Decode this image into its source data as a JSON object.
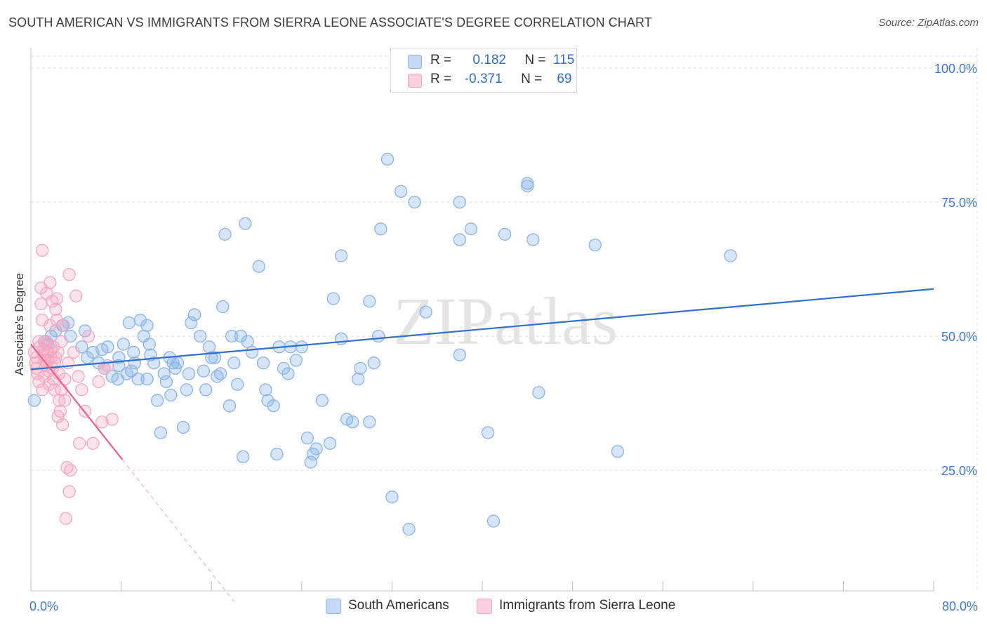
{
  "chart_data": {
    "type": "scatter",
    "title": "SOUTH AMERICAN VS IMMIGRANTS FROM SIERRA LEONE ASSOCIATE'S DEGREE CORRELATION CHART",
    "source": "Source: ZipAtlas.com",
    "xlabel": "",
    "ylabel": "Associate's Degree",
    "xlim": [
      0,
      80
    ],
    "ylim": [
      0,
      105
    ],
    "x_tick_labels": [
      "0.0%",
      "80.0%"
    ],
    "y_ticks": [
      25,
      50,
      75,
      100
    ],
    "y_tick_labels": [
      "25.0%",
      "50.0%",
      "75.0%",
      "100.0%"
    ],
    "grid": true,
    "watermark": "ZIPatlas",
    "legend_position": "top-center",
    "stats": [
      {
        "r_label": "R =",
        "r": "0.182",
        "n_label": "N =",
        "n": "115"
      },
      {
        "r_label": "R =",
        "r": "-0.371",
        "n_label": "N =",
        "n": "69"
      }
    ],
    "series": [
      {
        "name": "South Americans",
        "color": "#8ab4e8",
        "line_color": "#2f6fd0",
        "trend": {
          "x0": 0,
          "y0": 43.8,
          "x1": 80,
          "y1": 58.8
        },
        "points": [
          [
            0.3,
            38
          ],
          [
            1.2,
            49
          ],
          [
            1.5,
            48.5
          ],
          [
            1.8,
            50
          ],
          [
            2.2,
            51
          ],
          [
            2.8,
            52
          ],
          [
            3.3,
            52.5
          ],
          [
            3.5,
            50
          ],
          [
            4.5,
            48
          ],
          [
            4.8,
            51
          ],
          [
            5,
            46
          ],
          [
            5.5,
            47
          ],
          [
            6,
            45
          ],
          [
            6.3,
            47.5
          ],
          [
            6.5,
            44
          ],
          [
            6.8,
            48
          ],
          [
            7.2,
            42.5
          ],
          [
            7.7,
            42
          ],
          [
            7.8,
            46
          ],
          [
            7.8,
            44.5
          ],
          [
            8.2,
            48.5
          ],
          [
            8.5,
            43
          ],
          [
            8.7,
            52.5
          ],
          [
            8.9,
            43.5
          ],
          [
            9.1,
            47
          ],
          [
            9.2,
            45
          ],
          [
            9.5,
            42
          ],
          [
            9.7,
            53
          ],
          [
            10,
            50
          ],
          [
            10.3,
            42
          ],
          [
            10.3,
            52
          ],
          [
            10.5,
            48.5
          ],
          [
            10.6,
            46.5
          ],
          [
            10.9,
            45
          ],
          [
            11.2,
            38
          ],
          [
            11.5,
            32
          ],
          [
            11.8,
            43
          ],
          [
            12,
            41.5
          ],
          [
            12.3,
            46
          ],
          [
            12.4,
            39
          ],
          [
            12.6,
            45
          ],
          [
            12.8,
            44
          ],
          [
            13,
            45
          ],
          [
            13.5,
            33
          ],
          [
            13.8,
            40
          ],
          [
            14,
            43
          ],
          [
            14.2,
            52.5
          ],
          [
            14.5,
            54
          ],
          [
            15,
            50
          ],
          [
            15.3,
            43.5
          ],
          [
            15.5,
            40
          ],
          [
            15.8,
            48
          ],
          [
            16,
            46
          ],
          [
            16.3,
            46
          ],
          [
            16.5,
            42.5
          ],
          [
            16.8,
            43
          ],
          [
            17,
            55.5
          ],
          [
            17.2,
            69
          ],
          [
            17.6,
            37
          ],
          [
            17.8,
            50
          ],
          [
            18,
            45
          ],
          [
            18.3,
            41
          ],
          [
            18.6,
            50
          ],
          [
            18.8,
            27.5
          ],
          [
            19,
            71
          ],
          [
            19.2,
            49
          ],
          [
            19.6,
            47
          ],
          [
            20.2,
            63
          ],
          [
            20.6,
            45
          ],
          [
            20.8,
            40
          ],
          [
            21,
            38
          ],
          [
            21.5,
            37
          ],
          [
            21.8,
            28
          ],
          [
            22,
            48
          ],
          [
            22.4,
            44
          ],
          [
            22.8,
            43
          ],
          [
            23,
            48
          ],
          [
            23.5,
            45.5
          ],
          [
            24,
            48
          ],
          [
            24.5,
            31
          ],
          [
            24.8,
            26.5
          ],
          [
            25,
            28
          ],
          [
            25.3,
            29
          ],
          [
            25.8,
            38
          ],
          [
            26.5,
            30
          ],
          [
            26.8,
            57
          ],
          [
            27.5,
            65
          ],
          [
            27.5,
            49.5
          ],
          [
            28,
            34.5
          ],
          [
            28.5,
            34
          ],
          [
            29,
            42
          ],
          [
            29.2,
            44
          ],
          [
            30.4,
            45
          ],
          [
            30,
            56.5
          ],
          [
            30.8,
            50
          ],
          [
            30,
            34
          ],
          [
            31,
            70
          ],
          [
            31.6,
            83
          ],
          [
            32,
            20
          ],
          [
            32.8,
            77
          ],
          [
            33.5,
            14
          ],
          [
            34,
            75
          ],
          [
            35,
            54.5
          ],
          [
            38,
            46.5
          ],
          [
            38,
            75
          ],
          [
            38,
            68
          ],
          [
            39,
            70
          ],
          [
            40.5,
            32
          ],
          [
            41,
            15.5
          ],
          [
            42,
            69
          ],
          [
            44,
            78
          ],
          [
            44,
            78.5
          ],
          [
            44.5,
            68
          ],
          [
            45,
            39.5
          ],
          [
            50,
            67
          ],
          [
            52,
            28.5
          ],
          [
            62,
            65
          ]
        ]
      },
      {
        "name": "Immigrants from Sierra Leone",
        "color": "#f4a7bf",
        "line_color": "#e8608e",
        "trend": {
          "x0": 0,
          "y0": 48.5,
          "x1": 8.1,
          "y1": 27
        },
        "trend_dashed": {
          "x0": 8.1,
          "y0": 27,
          "x1": 18,
          "y1": 0.5
        },
        "points": [
          [
            0.3,
            47
          ],
          [
            0.4,
            45
          ],
          [
            0.5,
            46
          ],
          [
            0.5,
            44
          ],
          [
            0.6,
            43
          ],
          [
            0.7,
            49
          ],
          [
            0.7,
            41.5
          ],
          [
            0.8,
            48
          ],
          [
            0.9,
            56
          ],
          [
            0.9,
            59
          ],
          [
            1,
            66
          ],
          [
            1,
            53
          ],
          [
            1,
            40
          ],
          [
            1.1,
            47.5
          ],
          [
            1.1,
            46.5
          ],
          [
            1.2,
            45.5
          ],
          [
            1.2,
            42.5
          ],
          [
            1.3,
            48.5
          ],
          [
            1.3,
            44.5
          ],
          [
            1.4,
            58
          ],
          [
            1.4,
            49
          ],
          [
            1.5,
            47
          ],
          [
            1.5,
            45.5
          ],
          [
            1.6,
            43.5
          ],
          [
            1.6,
            41
          ],
          [
            1.7,
            60
          ],
          [
            1.7,
            52
          ],
          [
            1.8,
            47.5
          ],
          [
            1.8,
            46
          ],
          [
            1.9,
            44
          ],
          [
            1.9,
            56.5
          ],
          [
            2,
            48
          ],
          [
            2,
            42
          ],
          [
            2.1,
            45
          ],
          [
            2.1,
            40
          ],
          [
            2.2,
            46
          ],
          [
            2.2,
            55
          ],
          [
            2.3,
            57
          ],
          [
            2.3,
            53
          ],
          [
            2.4,
            35
          ],
          [
            2.4,
            47
          ],
          [
            2.5,
            38
          ],
          [
            2.5,
            43
          ],
          [
            2.6,
            36
          ],
          [
            2.7,
            49
          ],
          [
            2.7,
            40
          ],
          [
            2.8,
            33.5
          ],
          [
            2.9,
            52
          ],
          [
            3,
            42
          ],
          [
            3,
            38
          ],
          [
            3.1,
            16
          ],
          [
            3.2,
            25.5
          ],
          [
            3.3,
            45
          ],
          [
            3.4,
            21
          ],
          [
            3.4,
            61.5
          ],
          [
            3.5,
            25
          ],
          [
            3.8,
            47
          ],
          [
            4,
            57.5
          ],
          [
            4.2,
            42.5
          ],
          [
            4.3,
            30
          ],
          [
            4.5,
            40
          ],
          [
            4.8,
            36
          ],
          [
            5.1,
            50
          ],
          [
            5.5,
            30
          ],
          [
            6,
            41.5
          ],
          [
            6.3,
            34
          ],
          [
            6.5,
            44
          ],
          [
            6.8,
            44.5
          ],
          [
            7.2,
            34.5
          ]
        ]
      }
    ]
  }
}
